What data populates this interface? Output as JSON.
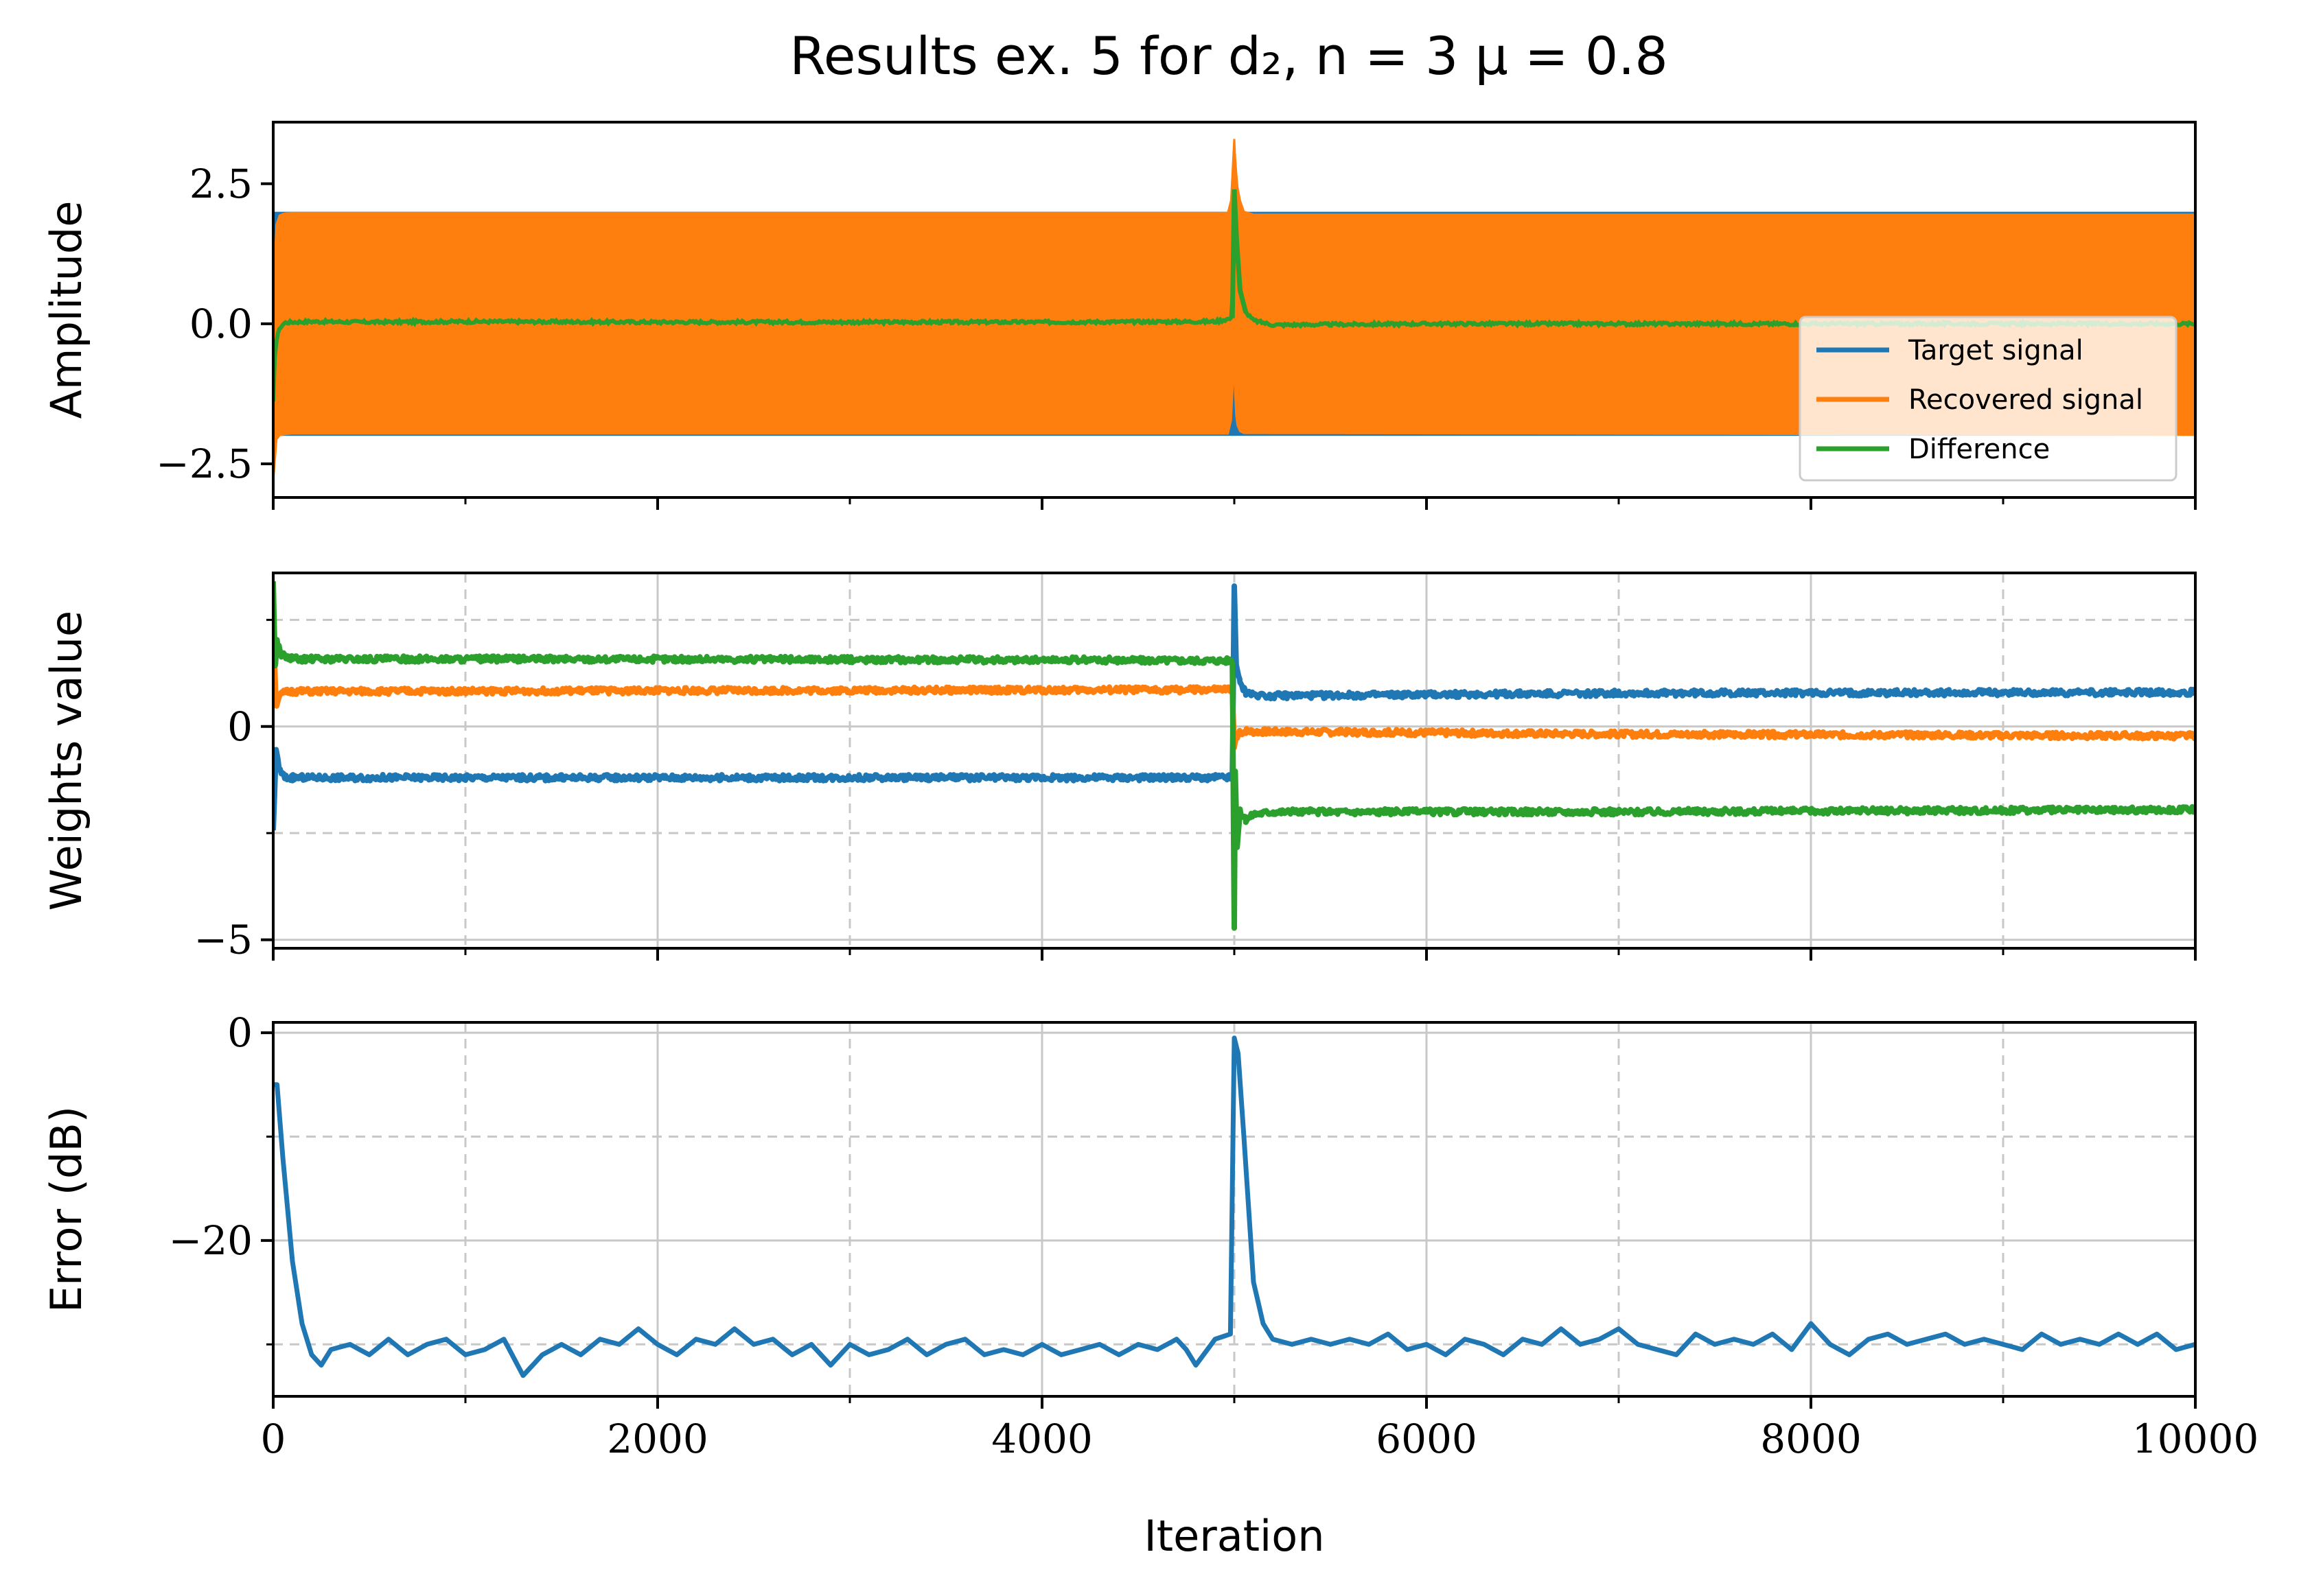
{
  "title": "Results ex. 5 for d₂, n = 3 μ = 0.8",
  "colors": {
    "blue": "#1f77b4",
    "orange": "#ff7f0e",
    "green": "#2ca02c",
    "grid": "#c8c8c8"
  },
  "chart_data": [
    {
      "type": "line",
      "subplot": "amplitude",
      "ylabel": "Amplitude",
      "xlim": [
        0,
        10000
      ],
      "ylim": [
        -3.1,
        3.6
      ],
      "yticks": [
        -2.5,
        0.0,
        2.5
      ],
      "ytick_labels": [
        "−2.5",
        "0.0",
        "2.5"
      ],
      "grid": false,
      "legend": {
        "placement": "lower-right",
        "entries": [
          "Target signal",
          "Recovered signal",
          "Difference"
        ]
      },
      "series": [
        {
          "name": "Target signal",
          "color": "#1f77b4",
          "description_band": [
            -2.0,
            2.0
          ]
        },
        {
          "name": "Recovered signal",
          "color": "#ff7f0e",
          "x": [
            0,
            10,
            20,
            40,
            60,
            100,
            4980,
            5000,
            5005,
            5020,
            5050,
            5100,
            10000
          ],
          "upper": [
            0.5,
            1.5,
            1.9,
            1.95,
            1.97,
            1.98,
            1.98,
            3.3,
            2.9,
            2.3,
            2.0,
            1.95,
            1.95
          ],
          "lower": [
            -2.8,
            -2.2,
            -2.0,
            -1.98,
            -1.97,
            -1.96,
            -1.96,
            -0.5,
            -1.5,
            -1.9,
            -1.95,
            -1.95,
            -1.98
          ]
        },
        {
          "name": "Difference",
          "color": "#2ca02c",
          "x": [
            0,
            5,
            10,
            20,
            40,
            60,
            100,
            200,
            500,
            1000,
            2000,
            3000,
            4000,
            4900,
            4990,
            5000,
            5010,
            5030,
            5060,
            5100,
            5200,
            6000,
            8000,
            10000
          ],
          "y": [
            -1.4,
            -0.8,
            -0.5,
            -0.2,
            -0.05,
            0.02,
            0.03,
            0.04,
            0.03,
            0.04,
            0.03,
            0.03,
            0.03,
            0.04,
            0.1,
            2.4,
            1.6,
            0.6,
            0.2,
            0.06,
            -0.02,
            0.0,
            0.0,
            0.0
          ]
        }
      ]
    },
    {
      "type": "line",
      "subplot": "weights",
      "ylabel": "Weights value",
      "xlim": [
        0,
        10000
      ],
      "ylim": [
        -5.2,
        3.6
      ],
      "yticks": [
        -5,
        0
      ],
      "ytick_labels": [
        "−5",
        "0"
      ],
      "minor_yticks": [
        -2.5,
        2.5
      ],
      "grid": true,
      "series": [
        {
          "color": "#1f77b4",
          "x": [
            0,
            15,
            30,
            60,
            100,
            1000,
            3000,
            4990,
            5000,
            5010,
            5030,
            5060,
            5100,
            5200,
            7000,
            10000
          ],
          "y": [
            -2.5,
            -0.5,
            -1.0,
            -1.2,
            -1.2,
            -1.2,
            -1.2,
            -1.2,
            3.3,
            1.5,
            1.0,
            0.8,
            0.75,
            0.72,
            0.78,
            0.8
          ]
        },
        {
          "color": "#ff7f0e",
          "x": [
            0,
            15,
            30,
            60,
            100,
            2000,
            4990,
            5000,
            5010,
            5030,
            5060,
            5100,
            5200,
            7000,
            10000
          ],
          "y": [
            2.5,
            0.5,
            0.7,
            0.8,
            0.82,
            0.84,
            0.86,
            -0.5,
            -0.3,
            -0.15,
            -0.1,
            -0.12,
            -0.12,
            -0.18,
            -0.22
          ]
        },
        {
          "color": "#2ca02c",
          "x": [
            0,
            10,
            20,
            40,
            80,
            150,
            2000,
            4990,
            5000,
            5005,
            5015,
            5030,
            5060,
            5100,
            5200,
            7000,
            10000
          ],
          "y": [
            3.4,
            1.4,
            2.0,
            1.7,
            1.6,
            1.58,
            1.58,
            1.55,
            -4.7,
            -1.0,
            -2.8,
            -2.0,
            -2.2,
            -2.05,
            -2.0,
            -2.0,
            -1.95
          ]
        }
      ]
    },
    {
      "type": "line",
      "subplot": "error",
      "ylabel": "Error (dB)",
      "xlabel": "Iteration",
      "xlim": [
        0,
        10000
      ],
      "xticks": [
        0,
        2000,
        4000,
        6000,
        8000,
        10000
      ],
      "xtick_labels": [
        "0",
        "2000",
        "4000",
        "6000",
        "8000",
        "10000"
      ],
      "minor_xticks": [
        1000,
        3000,
        5000,
        7000,
        9000
      ],
      "ylim": [
        -35,
        1
      ],
      "yticks": [
        -20,
        0
      ],
      "ytick_labels": [
        "−20",
        "0"
      ],
      "minor_yticks": [
        -30,
        -10
      ],
      "grid": true,
      "series": [
        {
          "color": "#1f77b4",
          "x": [
            0,
            20,
            50,
            100,
            150,
            200,
            250,
            300,
            400,
            500,
            600,
            700,
            800,
            900,
            1000,
            1100,
            1200,
            1300,
            1400,
            1500,
            1600,
            1700,
            1800,
            1900,
            2000,
            2100,
            2200,
            2300,
            2400,
            2500,
            2600,
            2700,
            2800,
            2900,
            3000,
            3100,
            3200,
            3300,
            3400,
            3500,
            3600,
            3700,
            3800,
            3900,
            4000,
            4100,
            4200,
            4300,
            4400,
            4500,
            4600,
            4700,
            4750,
            4800,
            4900,
            4980,
            5000,
            5020,
            5050,
            5100,
            5150,
            5200,
            5300,
            5400,
            5500,
            5600,
            5700,
            5800,
            5900,
            6000,
            6100,
            6200,
            6300,
            6400,
            6500,
            6600,
            6700,
            6800,
            6900,
            7000,
            7100,
            7200,
            7300,
            7400,
            7500,
            7600,
            7700,
            7800,
            7900,
            8000,
            8100,
            8200,
            8300,
            8400,
            8500,
            8600,
            8700,
            8800,
            8900,
            9000,
            9100,
            9200,
            9300,
            9400,
            9500,
            9600,
            9700,
            9800,
            9900,
            10000
          ],
          "y": [
            -5,
            -5,
            -12,
            -22,
            -28,
            -31,
            -32,
            -30.5,
            -30,
            -31,
            -29.5,
            -31,
            -30,
            -29.5,
            -31,
            -30.5,
            -29.5,
            -33,
            -31,
            -30,
            -31,
            -29.5,
            -30,
            -28.5,
            -30,
            -31,
            -29.5,
            -30,
            -28.5,
            -30,
            -29.5,
            -31,
            -30,
            -32,
            -30,
            -31,
            -30.5,
            -29.5,
            -31,
            -30,
            -29.5,
            -31,
            -30.5,
            -31,
            -30,
            -31,
            -30.5,
            -30,
            -31,
            -30,
            -30.5,
            -29.5,
            -30.5,
            -32,
            -29.5,
            -29,
            -0.5,
            -2,
            -10,
            -24,
            -28,
            -29.5,
            -30,
            -29.5,
            -30,
            -29.5,
            -30,
            -29,
            -30.5,
            -30,
            -31,
            -29.5,
            -30,
            -31,
            -29.5,
            -30,
            -28.5,
            -30,
            -29.5,
            -28.5,
            -30,
            -30.5,
            -31,
            -29,
            -30,
            -29.5,
            -30,
            -29,
            -30.5,
            -28,
            -30,
            -31,
            -29.5,
            -29,
            -30,
            -29.5,
            -29,
            -30,
            -29.5,
            -30,
            -30.5,
            -29,
            -30,
            -29.5,
            -30,
            -29,
            -30,
            -29,
            -30.5,
            -30
          ]
        }
      ]
    }
  ]
}
